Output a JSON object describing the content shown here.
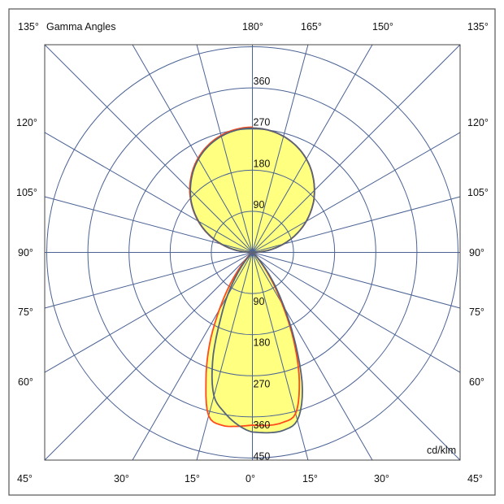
{
  "chart_data": {
    "type": "polar",
    "title": "Gamma Angles",
    "unit_label": "cd/klm",
    "radial_ticks": [
      90,
      180,
      270,
      360,
      450
    ],
    "radial_max": 450,
    "angle_step": 15,
    "grid": true,
    "angle_labels": {
      "top": [
        "135°",
        "180°",
        "165°",
        "150°",
        "135°"
      ],
      "bottom": [
        "45°",
        "30°",
        "15°",
        "0°",
        "15°",
        "30°",
        "45°"
      ],
      "left": [
        "120°",
        "105°",
        "90°",
        "75°",
        "60°"
      ],
      "right": [
        "120°",
        "105°",
        "90°",
        "75°",
        "60°"
      ]
    },
    "gamma": [
      0,
      5,
      10,
      15,
      20,
      25,
      30,
      35,
      40,
      45,
      50,
      55,
      60,
      65,
      70,
      75,
      80,
      85,
      90,
      95,
      100,
      105,
      110,
      115,
      120,
      125,
      130,
      135,
      140,
      145,
      150,
      155,
      160,
      165,
      170,
      175,
      180
    ],
    "series": [
      {
        "color": "#ff4a1c",
        "right": [
          378,
          380,
          378,
          365,
          300,
          215,
          130,
          70,
          30,
          12,
          4,
          1,
          0,
          0,
          0,
          0,
          0,
          0,
          0,
          24,
          47,
          70,
          93,
          115,
          136,
          156,
          175,
          192,
          208,
          223,
          236,
          247,
          256,
          263,
          268,
          271,
          272
        ],
        "left": [
          378,
          382,
          384,
          370,
          297,
          222,
          145,
          85,
          40,
          15,
          5,
          1,
          0,
          0,
          0,
          0,
          0,
          0,
          0,
          24,
          48,
          71,
          94,
          116,
          137,
          157,
          176,
          194,
          210,
          225,
          238,
          249,
          258,
          265,
          270,
          273,
          274
        ]
      },
      {
        "color": "#556479",
        "right": [
          393,
          396,
          395,
          380,
          320,
          225,
          140,
          80,
          35,
          12,
          4,
          1,
          0,
          0,
          0,
          0,
          0,
          0,
          0,
          24,
          47,
          70,
          93,
          115,
          136,
          156,
          175,
          192,
          208,
          223,
          236,
          247,
          256,
          263,
          268,
          271,
          272
        ],
        "left": [
          393,
          378,
          355,
          325,
          255,
          170,
          110,
          60,
          25,
          8,
          3,
          1,
          0,
          0,
          0,
          0,
          0,
          0,
          0,
          24,
          47,
          70,
          93,
          115,
          136,
          156,
          175,
          192,
          208,
          223,
          236,
          247,
          256,
          263,
          268,
          271,
          272
        ]
      }
    ],
    "fill_color": "#ffff80",
    "grid_color": "#4a6294"
  }
}
